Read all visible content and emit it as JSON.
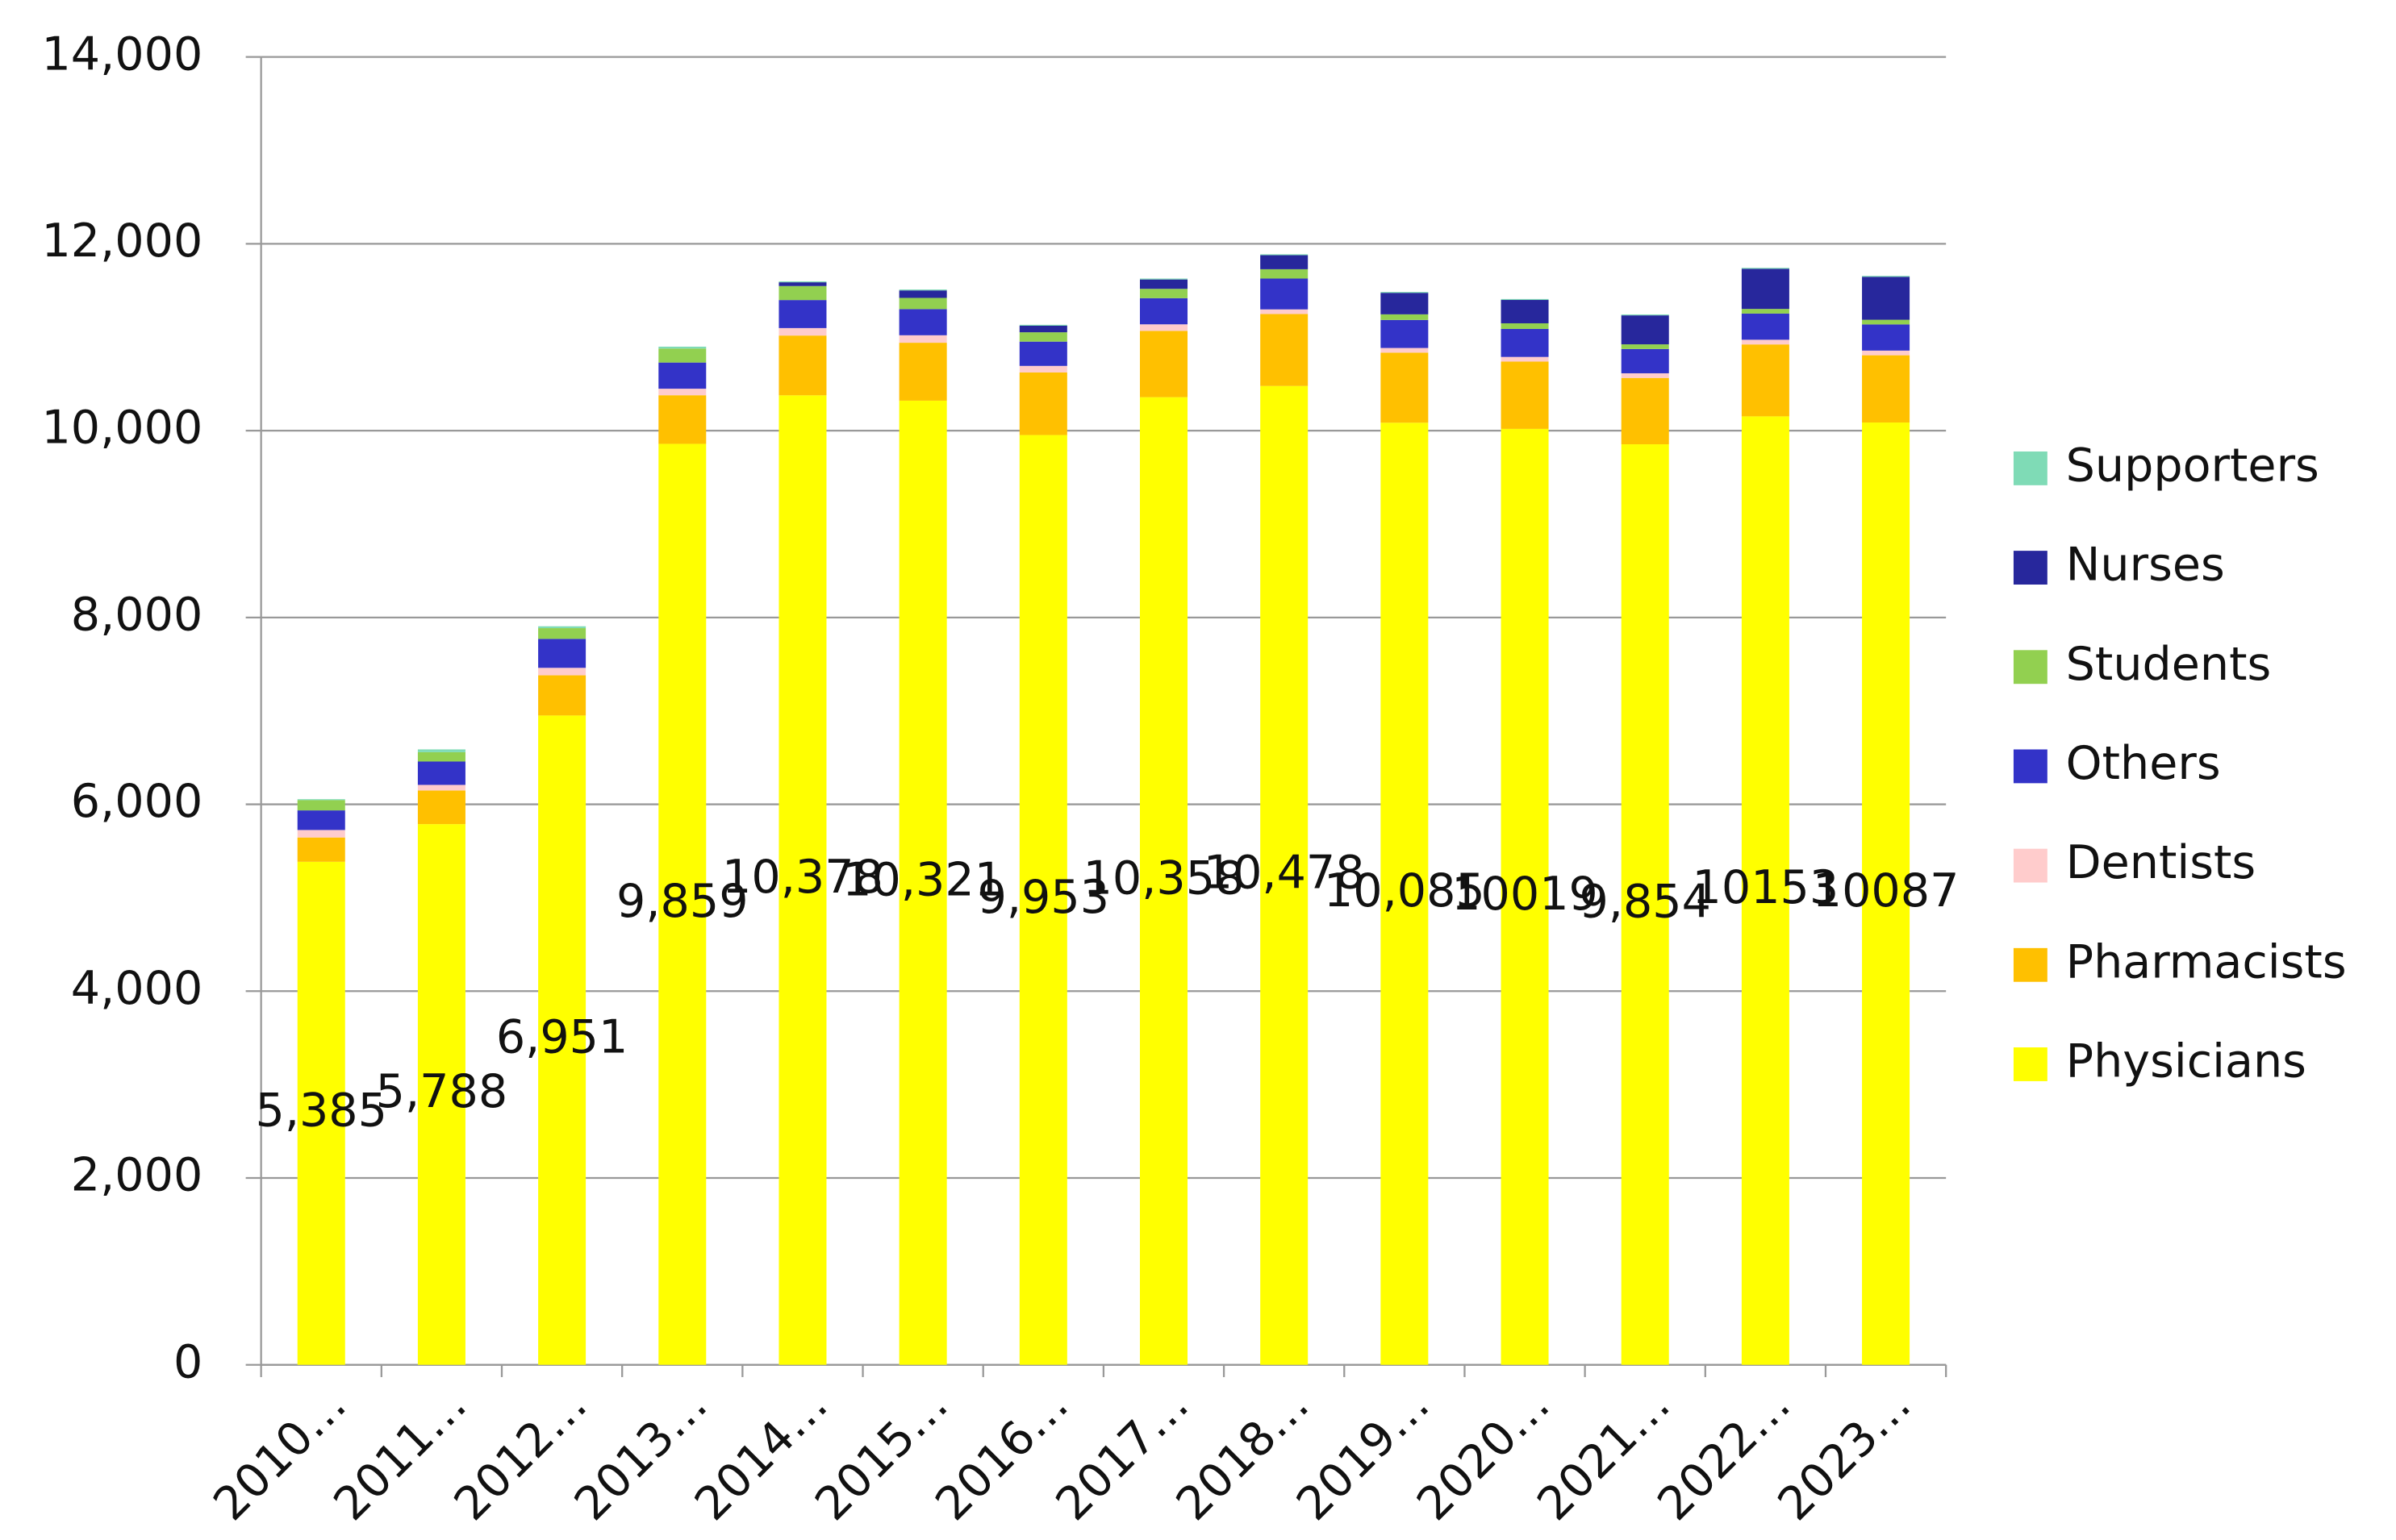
{
  "chart_data": {
    "type": "stacked-bar",
    "categories": [
      "2010…",
      "2011…",
      "2012…",
      "2013…",
      "2014…",
      "2015…",
      "2016…",
      "2017…",
      "2018…",
      "2019…",
      "2020…",
      "2021…",
      "2022…",
      "2023…"
    ],
    "series": [
      {
        "name": "Physicians",
        "color": "#ffff00",
        "values": [
          5385,
          5788,
          6951,
          9859,
          10378,
          10321,
          9953,
          10358,
          10478,
          10085,
          10019,
          9854,
          10153,
          10087
        ],
        "value_labels": [
          "5,385",
          "5,788",
          "6,951",
          "9,859",
          "10,378",
          "10,321",
          "9,953",
          "10,358",
          "10,478",
          "10,085",
          "10019",
          "9,854",
          "10153",
          "10087"
        ]
      },
      {
        "name": "Pharmacists",
        "color": "#ffc000",
        "values": [
          260,
          360,
          430,
          520,
          640,
          620,
          670,
          710,
          770,
          750,
          720,
          710,
          770,
          720
        ]
      },
      {
        "name": "Dentists",
        "color": "#ffcccc",
        "values": [
          80,
          60,
          80,
          70,
          80,
          80,
          70,
          70,
          50,
          50,
          50,
          50,
          50,
          50
        ]
      },
      {
        "name": "Others",
        "color": "#3333c8",
        "values": [
          210,
          250,
          310,
          280,
          300,
          280,
          260,
          280,
          330,
          300,
          300,
          260,
          280,
          280
        ]
      },
      {
        "name": "Students",
        "color": "#92d050",
        "values": [
          110,
          100,
          115,
          150,
          150,
          120,
          100,
          100,
          100,
          60,
          60,
          50,
          50,
          50
        ]
      },
      {
        "name": "Nurses",
        "color": "#27279c",
        "values": [
          0,
          0,
          0,
          0,
          40,
          80,
          70,
          100,
          150,
          230,
          250,
          310,
          430,
          460
        ]
      },
      {
        "name": "Supporters",
        "color": "#7fdbb6",
        "values": [
          10,
          30,
          20,
          20,
          10,
          10,
          10,
          10,
          10,
          10,
          10,
          10,
          10,
          10
        ]
      }
    ],
    "ylim": [
      0,
      14000
    ],
    "yticks": [
      0,
      {
        "value": 2000,
        "label": "2,000"
      },
      {
        "value": 4000,
        "label": "4,000"
      },
      {
        "value": 6000,
        "label": "6,000"
      },
      {
        "value": 8000,
        "label": "8,000"
      },
      {
        "value": 10000,
        "label": "10,000"
      },
      {
        "value": 12000,
        "label": "12,000"
      },
      {
        "value": 14000,
        "label": "14,000"
      }
    ],
    "grid": true,
    "legend": "right"
  }
}
